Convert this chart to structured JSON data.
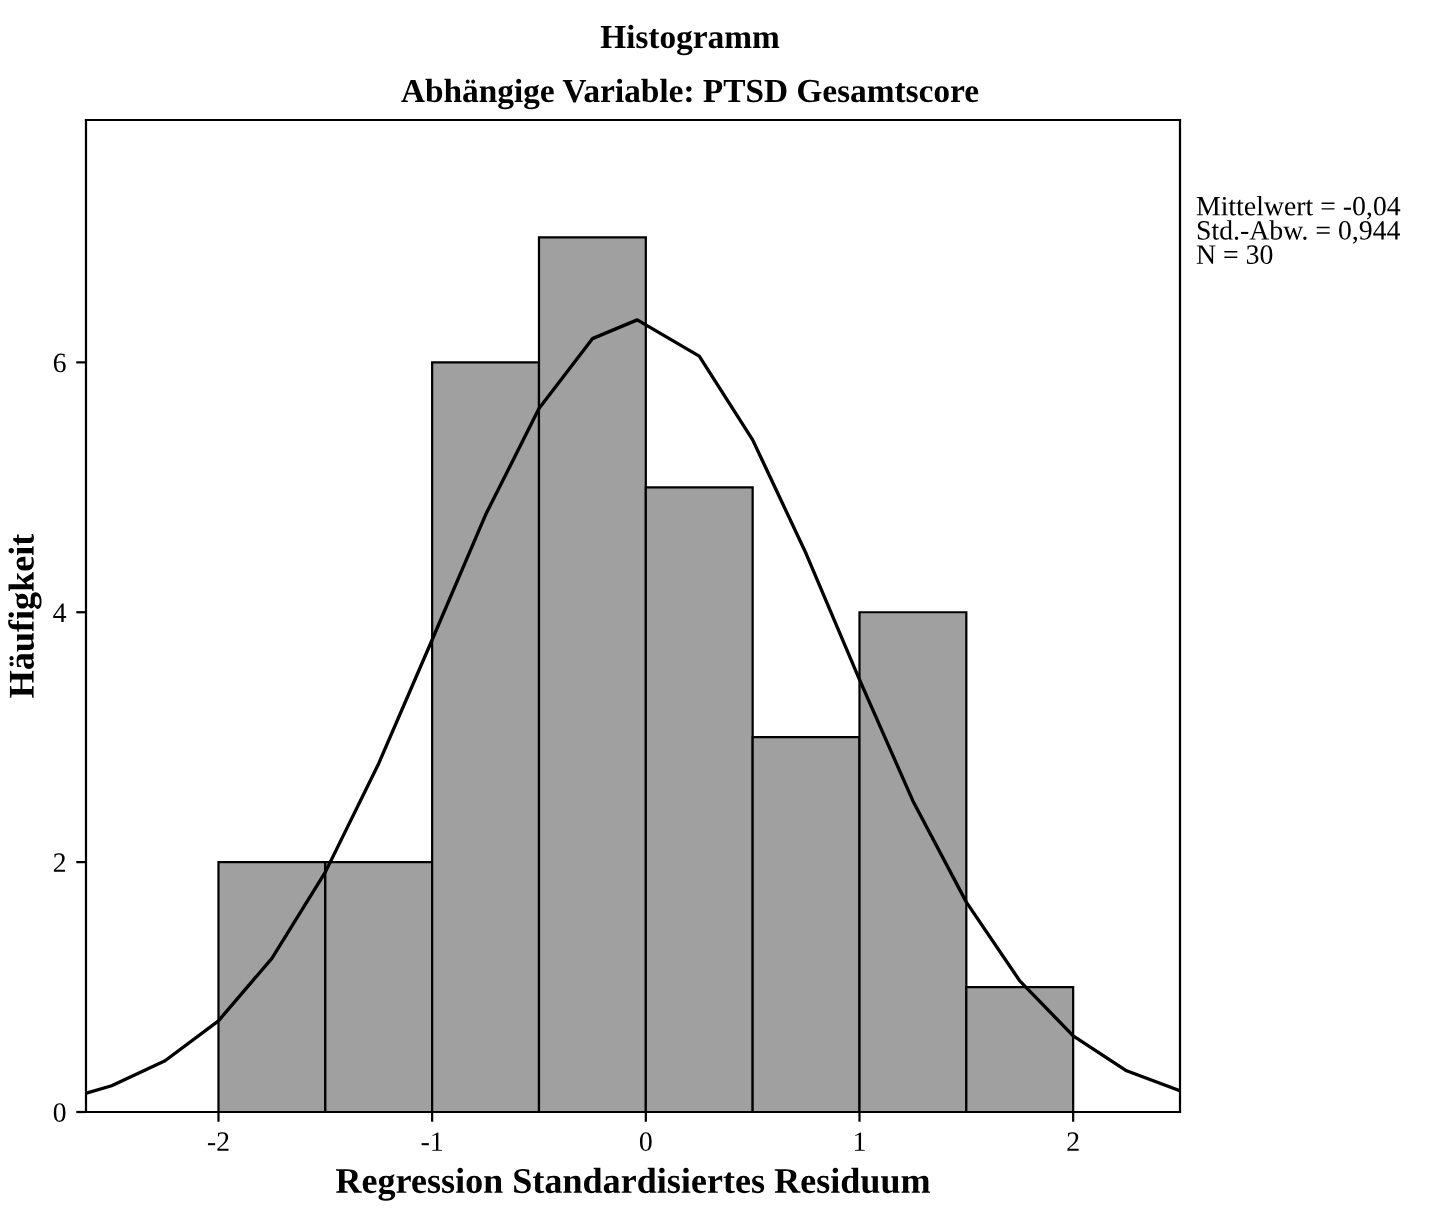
{
  "chart_data": {
    "type": "histogram",
    "title": "Histogramm",
    "subtitle": "Abhängige Variable: PTSD Gesamtscore",
    "xlabel": "Regression Standardisiertes Residuum",
    "ylabel": "Häufigkeit",
    "annotations": [
      "Mittelwert = -0,04\nStd.-Abw. = 0,944\nN = 30"
    ],
    "series": [
      {
        "color": "#a0a0a0",
        "bins": [
          -2,
          -1.5,
          -1,
          -0.5,
          0,
          0.5,
          1,
          1.5,
          2
        ],
        "values": [
          2,
          2,
          6,
          7,
          5,
          3,
          4,
          1
        ]
      },
      {
        "type": "line",
        "color": "#000000",
        "x": [
          -2.62,
          -2.5,
          -2.25,
          -2,
          -1.75,
          -1.5,
          -1.25,
          -1,
          -0.75,
          -0.5,
          -0.25,
          -0.04,
          0.25,
          0.5,
          0.75,
          1,
          1.25,
          1.5,
          1.75,
          2,
          2.25,
          2.5
        ],
        "values": [
          0.15,
          0.21,
          0.41,
          0.73,
          1.23,
          1.92,
          2.79,
          3.78,
          4.78,
          5.63,
          6.19,
          6.34,
          6.05,
          5.38,
          4.47,
          3.46,
          2.49,
          1.68,
          1.05,
          0.61,
          0.33,
          0.17
        ]
      }
    ],
    "xlim": [
      -2.62,
      2.5
    ],
    "ylim": [
      0,
      7.94
    ],
    "xticks": [
      -2,
      -1,
      0,
      1,
      2
    ],
    "yticks": [
      0,
      2,
      4,
      6
    ],
    "grid": false,
    "legend": false,
    "marker": "none",
    "line_style": "solid"
  }
}
